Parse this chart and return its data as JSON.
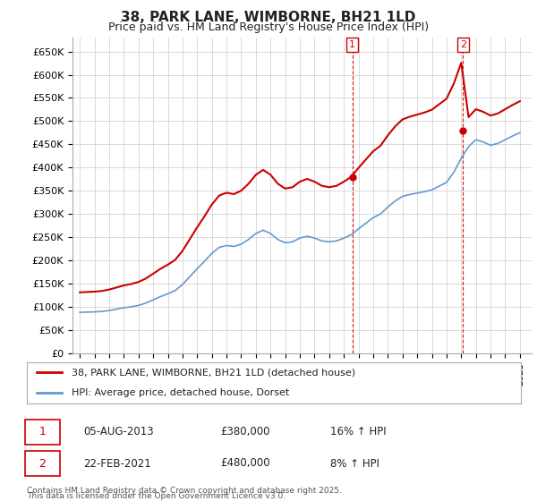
{
  "title": "38, PARK LANE, WIMBORNE, BH21 1LD",
  "subtitle": "Price paid vs. HM Land Registry's House Price Index (HPI)",
  "ylim": [
    0,
    680000
  ],
  "yticks": [
    0,
    50000,
    100000,
    150000,
    200000,
    250000,
    300000,
    350000,
    400000,
    450000,
    500000,
    550000,
    600000,
    650000
  ],
  "ytick_labels": [
    "£0",
    "£50K",
    "£100K",
    "£150K",
    "£200K",
    "£250K",
    "£300K",
    "£350K",
    "£400K",
    "£450K",
    "£500K",
    "£550K",
    "£600K",
    "£650K"
  ],
  "hpi_color": "#6699cc",
  "price_color": "#cc0000",
  "sale1_date": 2013.58,
  "sale1_price": 380000,
  "sale1_label": "1",
  "sale2_date": 2021.12,
  "sale2_price": 480000,
  "sale2_label": "2",
  "legend_label1": "38, PARK LANE, WIMBORNE, BH21 1LD (detached house)",
  "legend_label2": "HPI: Average price, detached house, Dorset",
  "ann1_date": "05-AUG-2013",
  "ann1_price": "£380,000",
  "ann1_hpi": "16% ↑ HPI",
  "ann2_date": "22-FEB-2021",
  "ann2_price": "£480,000",
  "ann2_hpi": "8% ↑ HPI",
  "footnote1": "Contains HM Land Registry data © Crown copyright and database right 2025.",
  "footnote2": "This data is licensed under the Open Government Licence v3.0.",
  "background_color": "#ffffff",
  "grid_color": "#cccccc",
  "hpi_at_sale1": 255000,
  "hpi_at_sale2": 420000
}
